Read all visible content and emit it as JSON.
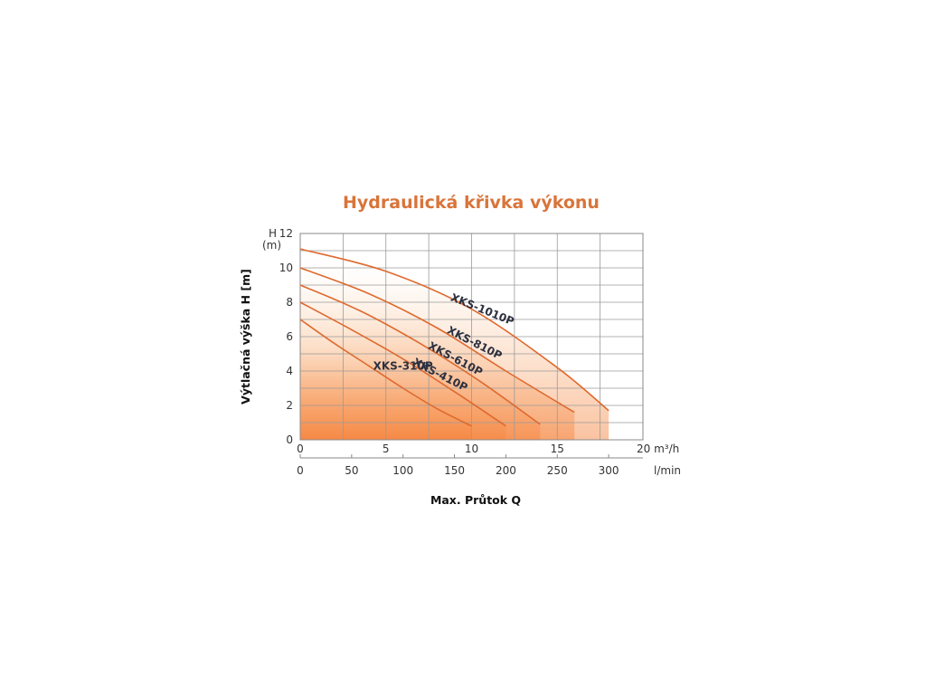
{
  "chart_data": {
    "type": "line",
    "title": "Hydraulická křivka výkonu",
    "ylabel": "Výtlačná výška H [m]",
    "y_axis_unit_top": "H",
    "y_axis_unit_bottom": "(m)",
    "xlabel": "Max. Průtok Q",
    "x_unit_primary": "20 m³/h",
    "x_unit_secondary": "l/min",
    "xlim": [
      0,
      20
    ],
    "ylim": [
      0,
      12
    ],
    "grid": true,
    "x_ticks_m3h": [
      "0",
      "5",
      "10",
      "15"
    ],
    "x_ticks_lmin": [
      "0",
      "50",
      "100",
      "150",
      "200",
      "250",
      "300"
    ],
    "y_ticks": [
      "0",
      "2",
      "4",
      "6",
      "8",
      "10",
      "12"
    ],
    "series": [
      {
        "name": "XKS-310P",
        "x": [
          0,
          2,
          4,
          6,
          8,
          10
        ],
        "y": [
          7.0,
          5.6,
          4.3,
          3.0,
          1.8,
          0.8
        ]
      },
      {
        "name": "XKS-410P",
        "x": [
          0,
          3,
          6,
          9,
          12
        ],
        "y": [
          8.0,
          6.4,
          4.7,
          2.8,
          0.8
        ]
      },
      {
        "name": "XKS-610P",
        "x": [
          0,
          3.5,
          7,
          10.5,
          14
        ],
        "y": [
          9.0,
          7.5,
          5.6,
          3.4,
          0.9
        ]
      },
      {
        "name": "XKS-810P",
        "x": [
          0,
          4,
          8,
          12,
          16
        ],
        "y": [
          10.0,
          8.5,
          6.5,
          4.0,
          1.6
        ]
      },
      {
        "name": "XKS-1010P",
        "x": [
          0,
          5,
          10,
          15,
          18
        ],
        "y": [
          11.1,
          9.8,
          7.6,
          4.2,
          1.7
        ]
      }
    ],
    "colors": {
      "curve": "#de6a2e",
      "title": "#d9743a",
      "fill_dark": "#f5853f",
      "fill_light": "#fde3cc"
    }
  }
}
